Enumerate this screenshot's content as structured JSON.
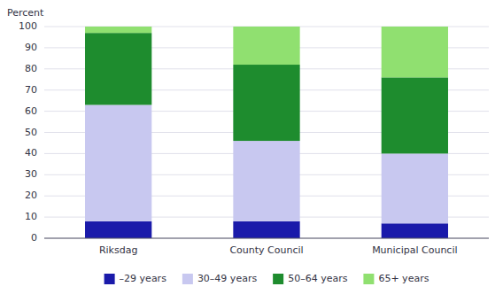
{
  "chart_data": {
    "type": "bar",
    "stacked": true,
    "ylabel": "Percent",
    "categories": [
      "Riksdag",
      "County Council",
      "Municipal Council"
    ],
    "series": [
      {
        "name": "–29 years",
        "color": "#1a1aaa",
        "values": [
          8,
          8,
          7
        ]
      },
      {
        "name": "30–49 years",
        "color": "#c8c8f0",
        "values": [
          55,
          38,
          33
        ]
      },
      {
        "name": "50–64 years",
        "color": "#1e8c2e",
        "values": [
          34,
          36,
          36
        ]
      },
      {
        "name": "65+ years",
        "color": "#90e070",
        "values": [
          3,
          18,
          24
        ]
      }
    ],
    "ylim": [
      0,
      100
    ],
    "yticks": [
      0,
      10,
      20,
      30,
      40,
      50,
      60,
      70,
      80,
      90,
      100
    ],
    "grid": true,
    "legend": "bottom"
  }
}
